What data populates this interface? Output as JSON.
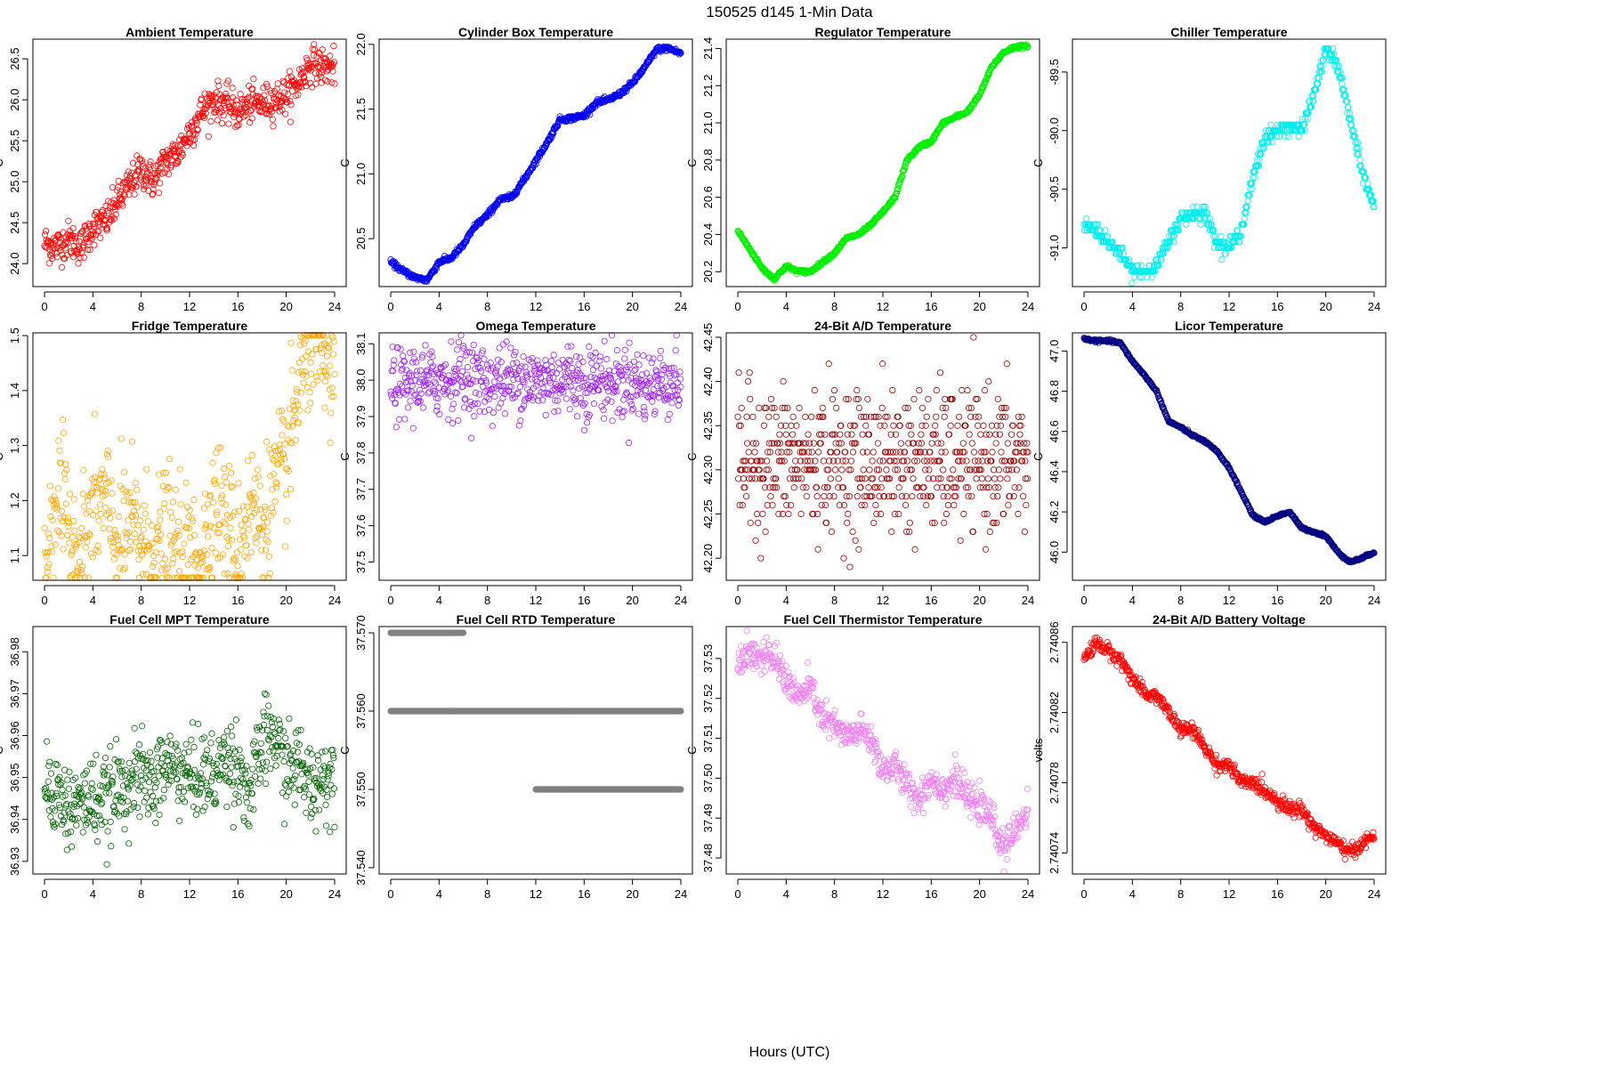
{
  "figure": {
    "title": "150525    d145    1-Min Data",
    "xlabel": "Hours (UTC)"
  },
  "chart_data": [
    {
      "type": "scatter",
      "title": "Ambient Temperature",
      "ylabel": "C",
      "color": "#ff0000",
      "xlim": [
        -0.96,
        24.96
      ],
      "ylim": [
        23.72,
        26.74
      ],
      "xticks": [
        0,
        4,
        8,
        12,
        16,
        20,
        24
      ],
      "yticks": [
        24.0,
        24.5,
        25.0,
        25.5,
        26.0,
        26.5
      ],
      "ytick_labels": [
        "24.0",
        "24.5",
        "25.0",
        "25.5",
        "26.0",
        "26.5"
      ],
      "series": {
        "x": [
          0,
          1,
          2,
          3,
          4,
          5,
          6,
          7,
          8,
          9,
          10,
          11,
          12,
          13,
          14,
          15,
          16,
          17,
          18,
          19,
          20,
          21,
          22,
          23,
          24
        ],
        "y": [
          24.25,
          24.2,
          24.3,
          24.2,
          24.45,
          24.5,
          24.75,
          24.95,
          25.15,
          25.0,
          25.25,
          25.35,
          25.6,
          25.85,
          26.0,
          25.95,
          25.85,
          25.95,
          25.95,
          26.0,
          26.05,
          26.2,
          26.45,
          26.4,
          26.4
        ]
      },
      "noise": 0.11
    },
    {
      "type": "scatter",
      "title": "Cylinder Box Temperature",
      "ylabel": "C",
      "color": "#0000ee",
      "xlim": [
        -0.96,
        24.96
      ],
      "ylim": [
        20.13,
        22.04
      ],
      "xticks": [
        0,
        4,
        8,
        12,
        16,
        20,
        24
      ],
      "yticks": [
        20.5,
        21.0,
        21.5,
        22.0
      ],
      "ytick_labels": [
        "20.5",
        "21.0",
        "21.5",
        "22.0"
      ],
      "series": {
        "x": [
          0,
          1,
          2,
          3,
          4,
          5,
          6,
          7,
          8,
          9,
          10,
          11,
          12,
          13,
          14,
          15,
          16,
          17,
          18,
          19,
          20,
          21,
          22,
          23,
          24
        ],
        "y": [
          20.32,
          20.25,
          20.2,
          20.18,
          20.32,
          20.35,
          20.45,
          20.6,
          20.68,
          20.8,
          20.82,
          20.95,
          21.1,
          21.25,
          21.42,
          21.43,
          21.45,
          21.55,
          21.57,
          21.62,
          21.7,
          21.82,
          21.96,
          21.97,
          21.93
        ]
      },
      "noise": 0.01
    },
    {
      "type": "scatter",
      "title": "Regulator Temperature",
      "ylabel": "C",
      "color": "#00ee00",
      "xlim": [
        -0.96,
        24.96
      ],
      "ylim": [
        20.12,
        21.45
      ],
      "xticks": [
        0,
        4,
        8,
        12,
        16,
        20,
        24
      ],
      "yticks": [
        20.2,
        20.4,
        20.6,
        20.8,
        21.0,
        21.2,
        21.4
      ],
      "ytick_labels": [
        "20.2",
        "20.4",
        "20.6",
        "20.8",
        "21.0",
        "21.2",
        "21.4"
      ],
      "series": {
        "x": [
          0,
          1,
          2,
          3,
          4,
          5,
          6,
          7,
          8,
          9,
          10,
          11,
          12,
          13,
          14,
          15,
          16,
          17,
          18,
          19,
          20,
          21,
          22,
          23,
          24
        ],
        "y": [
          20.42,
          20.32,
          20.22,
          20.16,
          20.23,
          20.2,
          20.2,
          20.25,
          20.3,
          20.38,
          20.4,
          20.45,
          20.52,
          20.6,
          20.8,
          20.87,
          20.9,
          21.0,
          21.03,
          21.06,
          21.15,
          21.3,
          21.38,
          21.41,
          21.41
        ]
      },
      "noise": 0.005
    },
    {
      "type": "scatter",
      "title": "Chiller Temperature",
      "ylabel": "C",
      "color": "#00eeee",
      "xlim": [
        -0.96,
        24.96
      ],
      "ylim": [
        -91.33,
        -89.22
      ],
      "xticks": [
        0,
        4,
        8,
        12,
        16,
        20,
        24
      ],
      "yticks": [
        -91.0,
        -90.5,
        -90.0,
        -89.5
      ],
      "ytick_labels": [
        "-91.0",
        "-90.5",
        "-90.0",
        "-89.5"
      ],
      "series": {
        "x": [
          0,
          1,
          2,
          3,
          4,
          5,
          6,
          7,
          8,
          9,
          10,
          11,
          12,
          13,
          14,
          15,
          16,
          17,
          18,
          19,
          20,
          21,
          22,
          23,
          24
        ],
        "y": [
          -90.8,
          -90.85,
          -90.95,
          -91.05,
          -91.2,
          -91.2,
          -91.15,
          -90.95,
          -90.75,
          -90.7,
          -90.7,
          -90.95,
          -91.0,
          -90.85,
          -90.4,
          -90.05,
          -90.0,
          -89.95,
          -90.0,
          -89.7,
          -89.3,
          -89.45,
          -89.9,
          -90.35,
          -90.65
        ]
      },
      "noise": 0.03,
      "quant": 0.05
    },
    {
      "type": "scatter",
      "title": "Fridge Temperature",
      "ylabel": "C",
      "color": "#ffa500",
      "xlim": [
        -0.96,
        24.96
      ],
      "ylim": [
        1.055,
        1.505
      ],
      "xticks": [
        0,
        4,
        8,
        12,
        16,
        20,
        24
      ],
      "yticks": [
        1.1,
        1.2,
        1.3,
        1.4,
        1.5
      ],
      "ytick_labels": [
        "1.1",
        "1.2",
        "1.3",
        "1.4",
        "1.5"
      ],
      "series": {
        "x": [
          0,
          1,
          2,
          3,
          4,
          5,
          6,
          7,
          8,
          9,
          10,
          11,
          12,
          13,
          14,
          15,
          16,
          17,
          18,
          19,
          20,
          21,
          22,
          23,
          24
        ],
        "y": [
          1.08,
          1.22,
          1.15,
          1.1,
          1.18,
          1.2,
          1.12,
          1.16,
          1.13,
          1.11,
          1.14,
          1.1,
          1.1,
          1.1,
          1.2,
          1.17,
          1.1,
          1.2,
          1.15,
          1.22,
          1.26,
          1.4,
          1.49,
          1.46,
          1.4
        ]
      },
      "noise": 0.06
    },
    {
      "type": "scatter",
      "title": "Omega Temperature",
      "ylabel": "C",
      "color": "#a020f0",
      "xlim": [
        -0.96,
        24.96
      ],
      "ylim": [
        37.45,
        38.13
      ],
      "xticks": [
        0,
        4,
        8,
        12,
        16,
        20,
        24
      ],
      "yticks": [
        37.5,
        37.6,
        37.7,
        37.8,
        37.9,
        38.0,
        38.1
      ],
      "ytick_labels": [
        "37.5",
        "37.6",
        "37.7",
        "37.8",
        "37.9",
        "38.0",
        "38.1"
      ],
      "series": {
        "x": [
          0,
          1,
          2,
          3,
          4,
          5,
          6,
          7,
          8,
          9,
          10,
          11,
          12,
          13,
          14,
          15,
          16,
          17,
          18,
          19,
          20,
          21,
          22,
          23,
          24
        ],
        "y": [
          38.0,
          37.98,
          38.0,
          37.99,
          38.0,
          38.0,
          38.02,
          38.0,
          37.99,
          38.0,
          38.0,
          38.01,
          37.99,
          38.0,
          38.0,
          38.01,
          37.99,
          38.0,
          38.0,
          37.99,
          38.0,
          37.98,
          37.99,
          38.0,
          38.0
        ]
      },
      "noise": 0.05
    },
    {
      "type": "scatter",
      "title": "24-Bit A/D Temperature",
      "ylabel": "C",
      "color": "#9b0000",
      "xlim": [
        -0.96,
        24.96
      ],
      "ylim": [
        42.175,
        42.455
      ],
      "xticks": [
        0,
        4,
        8,
        12,
        16,
        20,
        24
      ],
      "yticks": [
        42.2,
        42.25,
        42.3,
        42.35,
        42.4,
        42.45
      ],
      "ytick_labels": [
        "42.20",
        "42.25",
        "42.30",
        "42.35",
        "42.40",
        "42.45"
      ],
      "series": {
        "x": [
          0,
          24
        ],
        "y": [
          42.31,
          42.31
        ]
      },
      "noise": 0.04,
      "quant": 0.01
    },
    {
      "type": "scatter",
      "title": "Licor Temperature",
      "ylabel": "C",
      "color": "#000080",
      "xlim": [
        -0.96,
        24.96
      ],
      "ylim": [
        45.86,
        47.09
      ],
      "xticks": [
        0,
        4,
        8,
        12,
        16,
        20,
        24
      ],
      "yticks": [
        46.0,
        46.2,
        46.4,
        46.6,
        46.8,
        47.0
      ],
      "ytick_labels": [
        "46.0",
        "46.2",
        "46.4",
        "46.6",
        "46.8",
        "47.0"
      ],
      "series": {
        "x": [
          0,
          1,
          2,
          3,
          4,
          5,
          6,
          7,
          8,
          9,
          10,
          11,
          12,
          13,
          14,
          15,
          16,
          17,
          18,
          19,
          20,
          21,
          22,
          23,
          24
        ],
        "y": [
          47.06,
          47.05,
          47.05,
          47.04,
          46.95,
          46.88,
          46.8,
          46.65,
          46.62,
          46.58,
          46.55,
          46.5,
          46.42,
          46.3,
          46.18,
          46.15,
          46.18,
          46.2,
          46.12,
          46.1,
          46.08,
          46.0,
          45.95,
          45.97,
          46.0
        ]
      },
      "noise": 0.003
    },
    {
      "type": "scatter",
      "title": "Fuel Cell MPT Temperature",
      "ylabel": "C",
      "color": "#006400",
      "xlim": [
        -0.96,
        24.96
      ],
      "ylim": [
        36.927,
        36.986
      ],
      "xticks": [
        0,
        4,
        8,
        12,
        16,
        20,
        24
      ],
      "yticks": [
        36.93,
        36.94,
        36.95,
        36.96,
        36.97,
        36.98
      ],
      "ytick_labels": [
        "36.93",
        "36.94",
        "36.95",
        "36.96",
        "36.97",
        "36.98"
      ],
      "series": {
        "x": [
          0,
          1,
          2,
          3,
          4,
          5,
          6,
          7,
          8,
          9,
          10,
          11,
          12,
          13,
          14,
          15,
          16,
          17,
          18,
          19,
          20,
          21,
          22,
          23,
          24
        ],
        "y": [
          36.948,
          36.947,
          36.942,
          36.944,
          36.945,
          36.944,
          36.947,
          36.949,
          36.95,
          36.948,
          36.953,
          36.952,
          36.95,
          36.951,
          36.95,
          36.955,
          36.953,
          36.945,
          36.958,
          36.96,
          36.952,
          36.953,
          36.948,
          36.95,
          36.951
        ]
      },
      "noise": 0.005
    },
    {
      "type": "scatter",
      "title": "Fuel Cell RTD Temperature",
      "ylabel": "C",
      "color": "#808080",
      "xlim": [
        -0.96,
        24.96
      ],
      "ylim": [
        37.5392,
        37.5708
      ],
      "xticks": [
        0,
        4,
        8,
        12,
        16,
        20,
        24
      ],
      "yticks": [
        37.54,
        37.55,
        37.56,
        37.57
      ],
      "ytick_labels": [
        "37.540",
        "37.550",
        "37.560",
        "37.570"
      ],
      "levels": [
        {
          "y": 37.56,
          "x": [
            0,
            24
          ]
        },
        {
          "y": 37.57,
          "x": [
            0,
            6
          ]
        },
        {
          "y": 37.55,
          "x": [
            12,
            24
          ]
        }
      ]
    },
    {
      "type": "scatter",
      "title": "Fuel Cell Thermistor Temperature",
      "ylabel": "C",
      "color": "#ee82ee",
      "xlim": [
        -0.96,
        24.96
      ],
      "ylim": [
        37.476,
        37.538
      ],
      "xticks": [
        0,
        4,
        8,
        12,
        16,
        20,
        24
      ],
      "yticks": [
        37.48,
        37.49,
        37.5,
        37.51,
        37.52,
        37.53
      ],
      "ytick_labels": [
        "37.48",
        "37.49",
        "37.50",
        "37.51",
        "37.52",
        "37.53"
      ],
      "series": {
        "x": [
          0,
          1,
          2,
          3,
          4,
          5,
          6,
          7,
          8,
          9,
          10,
          11,
          12,
          13,
          14,
          15,
          16,
          17,
          18,
          19,
          20,
          21,
          22,
          23,
          24
        ],
        "y": [
          37.53,
          37.532,
          37.53,
          37.53,
          37.525,
          37.52,
          37.523,
          37.515,
          37.513,
          37.51,
          37.512,
          37.51,
          37.502,
          37.503,
          37.498,
          37.495,
          37.5,
          37.497,
          37.5,
          37.495,
          37.493,
          37.49,
          37.482,
          37.487,
          37.493
        ]
      },
      "noise": 0.002
    },
    {
      "type": "scatter",
      "title": "24-Bit A/D Battery Voltage",
      "ylabel": "volts",
      "color": "#ff0000",
      "xlim": [
        -0.96,
        24.96
      ],
      "ylim": [
        2.740728,
        2.740869
      ],
      "xticks": [
        0,
        4,
        8,
        12,
        16,
        20,
        24
      ],
      "yticks": [
        2.74074,
        2.74078,
        2.74082,
        2.74086
      ],
      "ytick_labels": [
        "2.74074",
        "2.74078",
        "2.74082",
        "2.74086"
      ],
      "series": {
        "x": [
          0,
          1,
          2,
          3,
          4,
          5,
          6,
          7,
          8,
          9,
          10,
          11,
          12,
          13,
          14,
          15,
          16,
          17,
          18,
          19,
          20,
          21,
          22,
          23,
          24
        ],
        "y": [
          2.74085,
          2.74086,
          2.740855,
          2.74085,
          2.74084,
          2.74083,
          2.74083,
          2.74082,
          2.74081,
          2.74081,
          2.7408,
          2.74079,
          2.74079,
          2.74078,
          2.74078,
          2.740775,
          2.74077,
          2.740765,
          2.740765,
          2.740755,
          2.74075,
          2.740745,
          2.74074,
          2.740745,
          2.74075
        ]
      },
      "noise": 2e-06
    }
  ]
}
